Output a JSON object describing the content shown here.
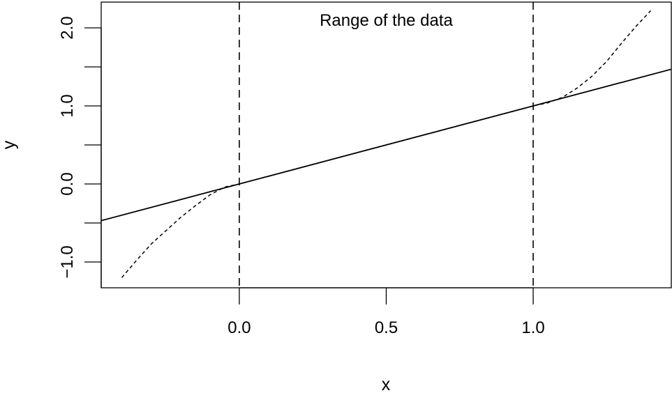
{
  "chart_data": {
    "type": "line",
    "title": "",
    "xlabel": "x",
    "ylabel": "y",
    "xlim": [
      -0.47,
      1.47
    ],
    "ylim": [
      -1.33,
      2.33
    ],
    "grid": false,
    "x_ticks": [
      {
        "value": 0.0,
        "label": "0.0"
      },
      {
        "value": 0.5,
        "label": "0.5"
      },
      {
        "value": 1.0,
        "label": "1.0"
      }
    ],
    "y_ticks": [
      {
        "value": -1.5,
        "label": ""
      },
      {
        "value": -1.0,
        "label": "−1.0"
      },
      {
        "value": -0.5,
        "label": ""
      },
      {
        "value": 0.0,
        "label": "0.0"
      },
      {
        "value": 0.5,
        "label": ""
      },
      {
        "value": 1.0,
        "label": "1.0"
      },
      {
        "value": 1.5,
        "label": ""
      },
      {
        "value": 2.0,
        "label": "2.0"
      }
    ],
    "annotations": [
      {
        "text": "Range of the data",
        "x": 0.5,
        "y": 2.1
      }
    ],
    "vlines": [
      {
        "x": 0.0,
        "style": "dashed"
      },
      {
        "x": 1.0,
        "style": "dashed"
      }
    ],
    "series": [
      {
        "style": "solid",
        "x": [
          -0.47,
          1.47
        ],
        "y": [
          -0.47,
          1.47
        ]
      },
      {
        "style": "dotted",
        "x": [
          -0.4,
          -0.35,
          -0.3,
          -0.25,
          -0.2,
          -0.15,
          -0.1,
          -0.05,
          0.0,
          0.1,
          0.2,
          0.3,
          0.4,
          0.5,
          0.6,
          0.7,
          0.8,
          0.9,
          1.0,
          1.05,
          1.1,
          1.15,
          1.2,
          1.25,
          1.3,
          1.35,
          1.4
        ],
        "y": [
          -1.2,
          -0.98,
          -0.77,
          -0.6,
          -0.43,
          -0.28,
          -0.14,
          -0.04,
          0.0,
          0.1,
          0.2,
          0.3,
          0.4,
          0.5,
          0.6,
          0.7,
          0.8,
          0.9,
          1.0,
          1.04,
          1.11,
          1.23,
          1.38,
          1.57,
          1.8,
          2.02,
          2.22
        ]
      }
    ]
  }
}
